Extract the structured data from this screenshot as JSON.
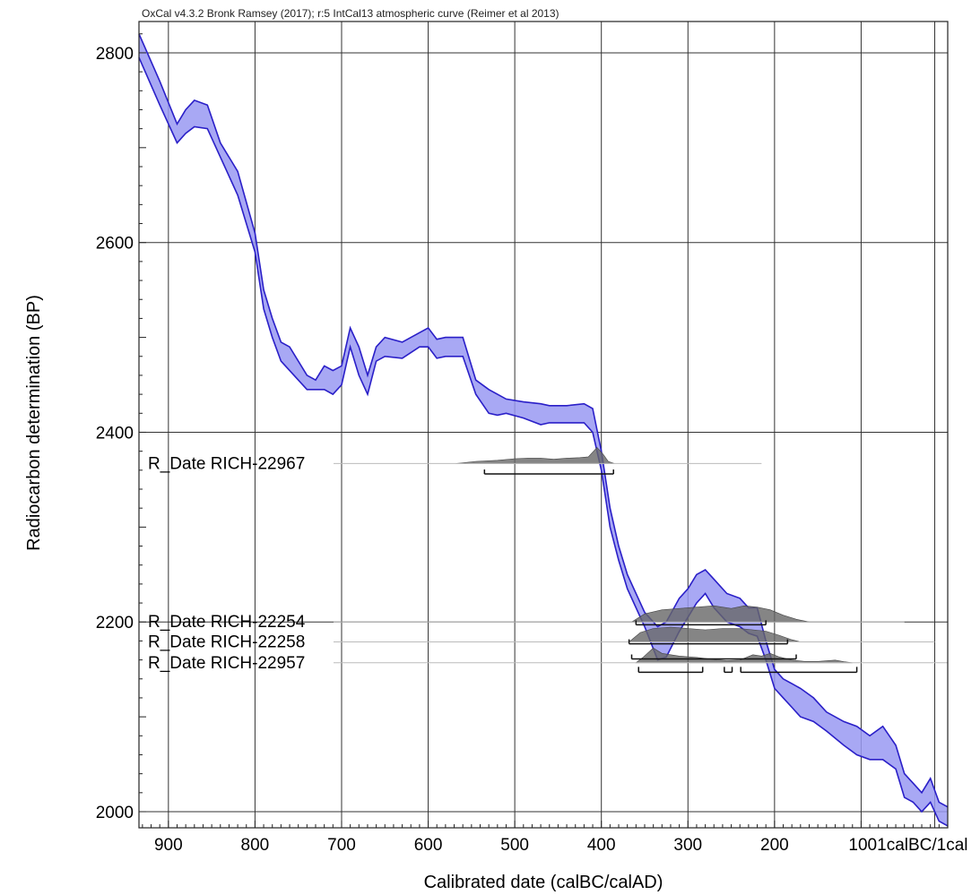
{
  "header": "OxCal v4.3.2 Bronk Ramsey (2017); r:5 IntCal13 atmospheric curve (Reimer et al 2013)",
  "colors": {
    "curve_stroke": "#2a1fc8",
    "curve_fill": "#9999f2",
    "distribution": "#666666",
    "grid": "#333333"
  },
  "chart_data": {
    "type": "area",
    "xlabel": "Calibrated date (calBC/calAD)",
    "ylabel": "Radiocarbon determination (BP)",
    "xlim": [
      -934,
      0
    ],
    "ylim": [
      1983,
      2833
    ],
    "x_ticks": [
      {
        "v": -900,
        "label": "900"
      },
      {
        "v": -800,
        "label": "800"
      },
      {
        "v": -700,
        "label": "700"
      },
      {
        "v": -600,
        "label": "600"
      },
      {
        "v": -500,
        "label": "500"
      },
      {
        "v": -400,
        "label": "400"
      },
      {
        "v": -300,
        "label": "300"
      },
      {
        "v": -200,
        "label": "200"
      },
      {
        "v": -100,
        "label": "1001calBC/1cal"
      }
    ],
    "y_ticks": [
      2800,
      2600,
      2400,
      2200,
      2000
    ],
    "grid": true,
    "calibration_curve": {
      "x": [
        -934,
        -910,
        -890,
        -880,
        -870,
        -855,
        -840,
        -820,
        -800,
        -790,
        -780,
        -770,
        -760,
        -740,
        -730,
        -720,
        -710,
        -700,
        -690,
        -680,
        -670,
        -660,
        -650,
        -630,
        -610,
        -600,
        -590,
        -580,
        -560,
        -545,
        -530,
        -520,
        -510,
        -490,
        -470,
        -460,
        -440,
        -420,
        -410,
        -400,
        -390,
        -380,
        -370,
        -350,
        -335,
        -325,
        -310,
        -300,
        -290,
        -280,
        -270,
        -255,
        -240,
        -230,
        -220,
        -210,
        -200,
        -190,
        -180,
        -170,
        -155,
        -140,
        -120,
        -105,
        -90,
        -75,
        -60,
        -50,
        -40,
        -30,
        -20,
        -10,
        0
      ],
      "upper": [
        2820,
        2770,
        2725,
        2740,
        2750,
        2745,
        2705,
        2675,
        2610,
        2550,
        2520,
        2495,
        2490,
        2460,
        2455,
        2470,
        2465,
        2470,
        2510,
        2490,
        2460,
        2490,
        2500,
        2495,
        2505,
        2510,
        2498,
        2500,
        2500,
        2455,
        2445,
        2440,
        2435,
        2432,
        2430,
        2428,
        2428,
        2430,
        2425,
        2380,
        2320,
        2280,
        2250,
        2210,
        2195,
        2200,
        2225,
        2235,
        2250,
        2255,
        2245,
        2230,
        2225,
        2215,
        2215,
        2180,
        2150,
        2140,
        2135,
        2130,
        2120,
        2105,
        2095,
        2090,
        2080,
        2090,
        2070,
        2040,
        2030,
        2020,
        2035,
        2010,
        2005
      ],
      "lower": [
        2795,
        2745,
        2705,
        2715,
        2722,
        2720,
        2690,
        2650,
        2590,
        2530,
        2500,
        2475,
        2465,
        2445,
        2445,
        2445,
        2440,
        2450,
        2490,
        2460,
        2440,
        2475,
        2480,
        2478,
        2490,
        2490,
        2478,
        2480,
        2480,
        2440,
        2420,
        2418,
        2420,
        2415,
        2408,
        2410,
        2410,
        2410,
        2400,
        2360,
        2300,
        2265,
        2235,
        2195,
        2160,
        2163,
        2190,
        2205,
        2220,
        2230,
        2215,
        2200,
        2195,
        2188,
        2185,
        2160,
        2130,
        2120,
        2110,
        2100,
        2095,
        2085,
        2070,
        2060,
        2055,
        2055,
        2045,
        2015,
        2010,
        2000,
        2010,
        1990,
        1985
      ]
    },
    "dates": [
      {
        "name": "R_Date RICH-22967",
        "line_y": 2367,
        "dist": [
          [
            -568,
            0
          ],
          [
            -545,
            0.08
          ],
          [
            -520,
            0.12
          ],
          [
            -500,
            0.18
          ],
          [
            -485,
            0.2
          ],
          [
            -470,
            0.2
          ],
          [
            -455,
            0.16
          ],
          [
            -440,
            0.2
          ],
          [
            -425,
            0.22
          ],
          [
            -415,
            0.25
          ],
          [
            -405,
            0.6
          ],
          [
            -398,
            0.35
          ],
          [
            -392,
            0.08
          ],
          [
            -385,
            0
          ]
        ],
        "range_y": 2356,
        "ranges": [
          [
            -535,
            -386
          ]
        ]
      },
      {
        "name": "R_Date RICH-22254",
        "line_y": 2200,
        "dist": [
          [
            -365,
            0
          ],
          [
            -350,
            0.3
          ],
          [
            -330,
            0.45
          ],
          [
            -310,
            0.5
          ],
          [
            -290,
            0.55
          ],
          [
            -270,
            0.6
          ],
          [
            -250,
            0.5
          ],
          [
            -235,
            0.6
          ],
          [
            -220,
            0.55
          ],
          [
            -205,
            0.45
          ],
          [
            -190,
            0.25
          ],
          [
            -175,
            0.1
          ],
          [
            -160,
            0
          ]
        ],
        "range_y": 2197,
        "ranges": [
          [
            -360,
            -210
          ]
        ]
      },
      {
        "name": "R_Date RICH-22258",
        "line_y": 2179,
        "dist": [
          [
            -368,
            0
          ],
          [
            -355,
            0.35
          ],
          [
            -340,
            0.5
          ],
          [
            -320,
            0.55
          ],
          [
            -300,
            0.5
          ],
          [
            -280,
            0.45
          ],
          [
            -260,
            0.5
          ],
          [
            -240,
            0.5
          ],
          [
            -225,
            0.45
          ],
          [
            -210,
            0.4
          ],
          [
            -195,
            0.25
          ],
          [
            -180,
            0.08
          ],
          [
            -170,
            0
          ]
        ],
        "range_y": 2177,
        "ranges": [
          [
            -368,
            -185
          ]
        ]
      },
      {
        "name": "R_Date RICH-22957",
        "line_y": 2157,
        "dist": [
          [
            -360,
            0
          ],
          [
            -352,
            0.2
          ],
          [
            -340,
            0.55
          ],
          [
            -330,
            0.35
          ],
          [
            -310,
            0.25
          ],
          [
            -290,
            0.2
          ],
          [
            -270,
            0.12
          ],
          [
            -255,
            0.08
          ],
          [
            -240,
            0.1
          ],
          [
            -225,
            0.3
          ],
          [
            -215,
            0.25
          ],
          [
            -205,
            0.35
          ],
          [
            -195,
            0.22
          ],
          [
            -180,
            0.1
          ],
          [
            -165,
            0.05
          ],
          [
            -150,
            0.05
          ],
          [
            -130,
            0.1
          ],
          [
            -120,
            0.04
          ],
          [
            -110,
            0
          ]
        ],
        "range_y": 2161,
        "ranges": [
          [
            -365,
            -175
          ]
        ]
      }
    ],
    "sigma2_ranges": {
      "y": 2147,
      "ranges": [
        [
          -357,
          -283
        ],
        [
          -258,
          -249
        ],
        [
          -239,
          -105
        ]
      ]
    }
  }
}
